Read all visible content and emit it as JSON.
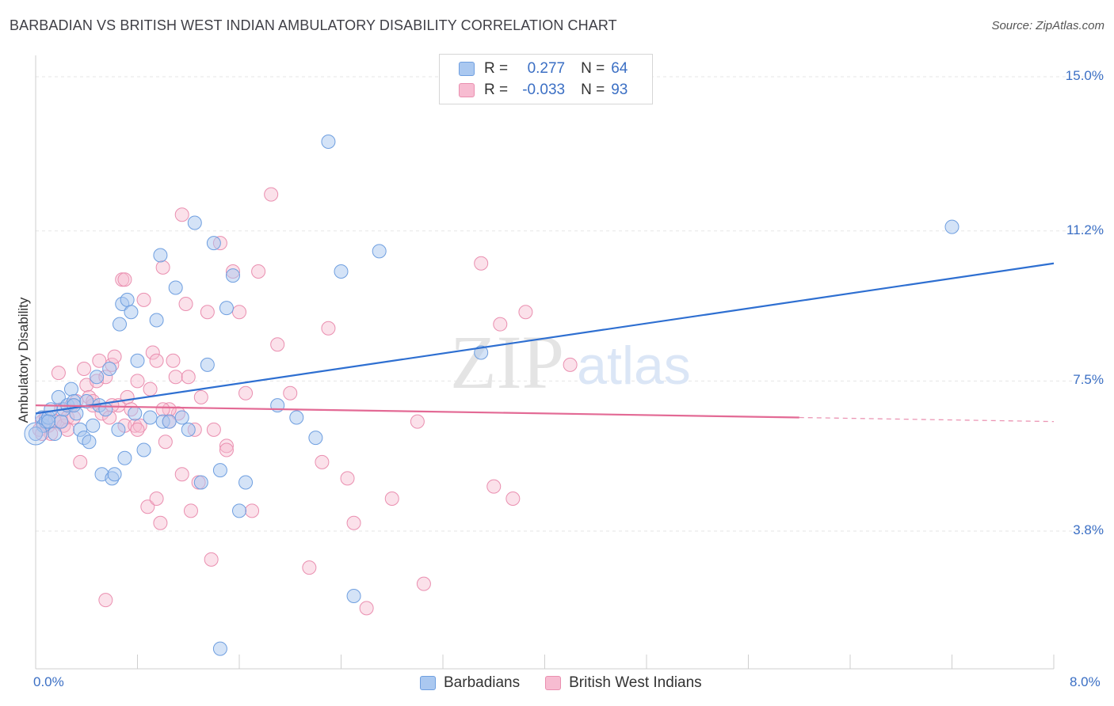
{
  "title": "BARBADIAN VS BRITISH WEST INDIAN AMBULATORY DISABILITY CORRELATION CHART",
  "source": "Source: ZipAtlas.com",
  "watermark": {
    "zip": "ZIP",
    "atlas": "atlas"
  },
  "legend": {
    "rows": [
      {
        "r_label": "R =",
        "r_value": "0.277",
        "n_label": "N =",
        "n_value": "64"
      },
      {
        "r_label": "R =",
        "r_value": "-0.033",
        "n_label": "N =",
        "n_value": "93"
      }
    ]
  },
  "bottom_legend": [
    "Barbadians",
    "British West Indians"
  ],
  "colors": {
    "blue_fill": "#aac8f0",
    "blue_stroke": "#6f9fe0",
    "blue_line": "#2e6fd1",
    "pink_fill": "#f7bcd1",
    "pink_stroke": "#ea8fb0",
    "pink_line": "#e36a95",
    "tick_text": "#3b6fc4",
    "grid": "#e6e6e6"
  },
  "chart_data": {
    "type": "scatter",
    "title": "BARBADIAN VS BRITISH WEST INDIAN AMBULATORY DISABILITY CORRELATION CHART",
    "xlabel": "",
    "ylabel": "Ambulatory Disability",
    "xlim": [
      0,
      8.0
    ],
    "ylim": [
      0,
      15.5
    ],
    "x_ticks": [
      "0.0%",
      "8.0%"
    ],
    "y_ticks": [
      "3.8%",
      "7.5%",
      "11.2%",
      "15.0%"
    ],
    "y_tick_values": [
      3.8,
      7.5,
      11.2,
      15.0
    ],
    "grid": "horizontal dashed",
    "legend_position": "top-center",
    "series": [
      {
        "name": "Barbadians",
        "r": 0.277,
        "n": 64,
        "trend": {
          "x": [
            0.0,
            8.0
          ],
          "y": [
            6.7,
            10.4
          ]
        },
        "points": [
          [
            0.05,
            6.6
          ],
          [
            0.06,
            6.4
          ],
          [
            0.08,
            6.5
          ],
          [
            0.1,
            6.6
          ],
          [
            0.12,
            6.8
          ],
          [
            0.15,
            6.2
          ],
          [
            0.18,
            7.1
          ],
          [
            0.2,
            6.5
          ],
          [
            0.22,
            6.8
          ],
          [
            0.25,
            6.9
          ],
          [
            0.28,
            7.3
          ],
          [
            0.3,
            7.0
          ],
          [
            0.32,
            6.7
          ],
          [
            0.35,
            6.3
          ],
          [
            0.38,
            6.1
          ],
          [
            0.4,
            7.0
          ],
          [
            0.42,
            6.0
          ],
          [
            0.45,
            6.4
          ],
          [
            0.48,
            7.6
          ],
          [
            0.5,
            6.9
          ],
          [
            0.52,
            5.2
          ],
          [
            0.55,
            6.8
          ],
          [
            0.58,
            7.8
          ],
          [
            0.6,
            5.1
          ],
          [
            0.62,
            5.2
          ],
          [
            0.65,
            6.3
          ],
          [
            0.68,
            9.4
          ],
          [
            0.7,
            5.6
          ],
          [
            0.72,
            9.5
          ],
          [
            0.75,
            9.2
          ],
          [
            0.78,
            6.7
          ],
          [
            0.8,
            8.0
          ],
          [
            0.85,
            5.8
          ],
          [
            0.9,
            6.6
          ],
          [
            0.95,
            9.0
          ],
          [
            0.98,
            10.6
          ],
          [
            1.0,
            6.5
          ],
          [
            1.05,
            6.5
          ],
          [
            1.1,
            9.8
          ],
          [
            1.15,
            6.6
          ],
          [
            1.2,
            6.3
          ],
          [
            1.25,
            11.4
          ],
          [
            1.3,
            5.0
          ],
          [
            1.35,
            7.9
          ],
          [
            1.4,
            10.9
          ],
          [
            1.45,
            5.3
          ],
          [
            1.5,
            9.3
          ],
          [
            1.55,
            10.1
          ],
          [
            1.6,
            4.3
          ],
          [
            1.65,
            5.0
          ],
          [
            1.9,
            6.9
          ],
          [
            2.05,
            6.6
          ],
          [
            2.2,
            6.1
          ],
          [
            2.3,
            13.4
          ],
          [
            2.4,
            10.2
          ],
          [
            2.5,
            2.2
          ],
          [
            2.7,
            10.7
          ],
          [
            3.5,
            8.2
          ],
          [
            7.2,
            11.3
          ],
          [
            0.66,
            8.9
          ],
          [
            0.3,
            6.9
          ],
          [
            0.1,
            6.5
          ],
          [
            0.0,
            6.2
          ],
          [
            1.45,
            0.9
          ]
        ]
      },
      {
        "name": "British West Indians",
        "r": -0.033,
        "n": 93,
        "trend": {
          "x": [
            0.0,
            6.0
          ],
          "y": [
            6.9,
            6.6
          ]
        },
        "trend_dashed": {
          "x": [
            6.0,
            8.0
          ],
          "y": [
            6.6,
            6.5
          ]
        },
        "points": [
          [
            0.03,
            6.3
          ],
          [
            0.05,
            6.5
          ],
          [
            0.08,
            6.6
          ],
          [
            0.1,
            6.4
          ],
          [
            0.12,
            6.2
          ],
          [
            0.15,
            6.5
          ],
          [
            0.18,
            7.7
          ],
          [
            0.2,
            6.8
          ],
          [
            0.22,
            6.4
          ],
          [
            0.25,
            6.6
          ],
          [
            0.28,
            6.9
          ],
          [
            0.3,
            6.6
          ],
          [
            0.32,
            7.0
          ],
          [
            0.35,
            5.5
          ],
          [
            0.38,
            7.8
          ],
          [
            0.4,
            7.4
          ],
          [
            0.42,
            7.1
          ],
          [
            0.45,
            6.9
          ],
          [
            0.48,
            7.5
          ],
          [
            0.5,
            8.0
          ],
          [
            0.52,
            6.7
          ],
          [
            0.55,
            7.6
          ],
          [
            0.58,
            6.6
          ],
          [
            0.6,
            7.9
          ],
          [
            0.62,
            8.1
          ],
          [
            0.65,
            6.9
          ],
          [
            0.68,
            10.0
          ],
          [
            0.7,
            6.4
          ],
          [
            0.72,
            7.1
          ],
          [
            0.75,
            6.8
          ],
          [
            0.78,
            6.4
          ],
          [
            0.8,
            7.5
          ],
          [
            0.82,
            6.4
          ],
          [
            0.85,
            9.5
          ],
          [
            0.88,
            4.4
          ],
          [
            0.9,
            7.3
          ],
          [
            0.92,
            8.2
          ],
          [
            0.95,
            4.6
          ],
          [
            0.98,
            4.0
          ],
          [
            1.0,
            10.3
          ],
          [
            1.02,
            6.0
          ],
          [
            1.05,
            6.5
          ],
          [
            1.08,
            8.0
          ],
          [
            1.1,
            7.6
          ],
          [
            1.12,
            6.7
          ],
          [
            1.15,
            5.2
          ],
          [
            1.18,
            9.4
          ],
          [
            1.2,
            7.6
          ],
          [
            1.22,
            4.3
          ],
          [
            1.25,
            6.3
          ],
          [
            1.28,
            5.0
          ],
          [
            1.3,
            7.1
          ],
          [
            1.35,
            9.2
          ],
          [
            1.38,
            3.1
          ],
          [
            1.4,
            6.3
          ],
          [
            1.45,
            10.9
          ],
          [
            1.5,
            5.9
          ],
          [
            1.55,
            10.2
          ],
          [
            1.6,
            9.2
          ],
          [
            1.65,
            7.2
          ],
          [
            1.7,
            4.3
          ],
          [
            1.75,
            10.2
          ],
          [
            1.85,
            12.1
          ],
          [
            1.9,
            8.4
          ],
          [
            2.0,
            7.2
          ],
          [
            2.15,
            2.9
          ],
          [
            2.25,
            5.5
          ],
          [
            2.3,
            8.8
          ],
          [
            2.45,
            5.1
          ],
          [
            2.5,
            4.0
          ],
          [
            2.6,
            1.9
          ],
          [
            2.8,
            4.6
          ],
          [
            3.0,
            6.5
          ],
          [
            3.05,
            2.5
          ],
          [
            3.5,
            10.4
          ],
          [
            3.6,
            4.9
          ],
          [
            3.65,
            8.9
          ],
          [
            3.75,
            4.6
          ],
          [
            3.85,
            9.2
          ],
          [
            4.2,
            7.9
          ],
          [
            0.55,
            2.1
          ],
          [
            0.95,
            8.0
          ],
          [
            1.15,
            11.6
          ],
          [
            0.7,
            10.0
          ],
          [
            1.05,
            6.8
          ],
          [
            0.45,
            7.0
          ],
          [
            0.25,
            6.3
          ],
          [
            0.2,
            6.5
          ],
          [
            1.5,
            5.8
          ],
          [
            0.6,
            6.9
          ],
          [
            0.8,
            6.3
          ],
          [
            1.0,
            6.8
          ],
          [
            0.05,
            6.2
          ]
        ]
      }
    ]
  }
}
